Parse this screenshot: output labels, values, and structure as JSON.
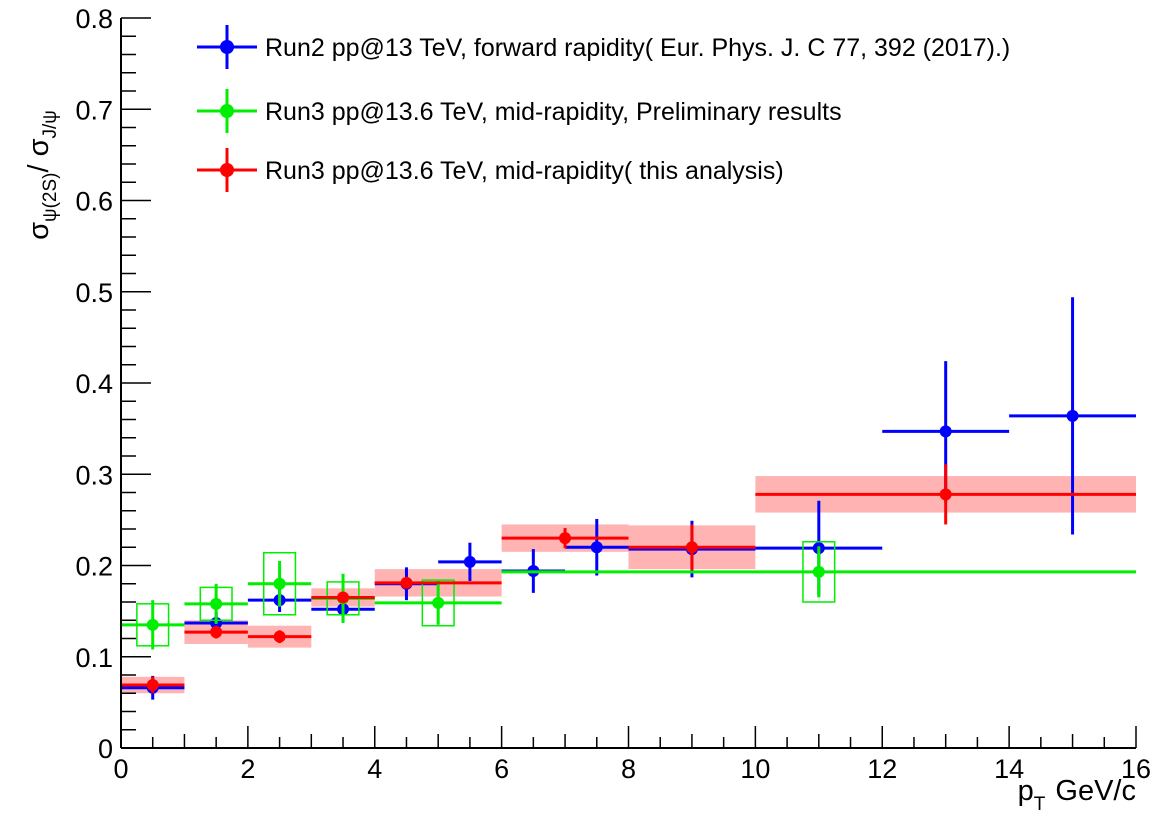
{
  "chart_data": {
    "type": "scatter",
    "title": "",
    "xlabel": "p",
    "xlabel_sub": "T",
    "xlabel_unit": "GeV/c",
    "ylabel_part1": "σ",
    "ylabel_sub1": "ψ(2S)",
    "ylabel_slash": "/ σ",
    "ylabel_sub2": "J/ψ",
    "xlim": [
      0,
      16
    ],
    "ylim": [
      0,
      0.8
    ],
    "x_ticks": [
      0,
      2,
      4,
      6,
      8,
      10,
      12,
      14,
      16
    ],
    "x_tick_labels": [
      "0",
      "2",
      "4",
      "6",
      "8",
      "10",
      "12",
      "14",
      "16"
    ],
    "y_ticks": [
      0,
      0.1,
      0.2,
      0.3,
      0.4,
      0.5,
      0.6,
      0.7,
      0.8
    ],
    "y_tick_labels": [
      "0",
      "0.1",
      "0.2",
      "0.3",
      "0.4",
      "0.5",
      "0.6",
      "0.7",
      "0.8"
    ],
    "grid": false,
    "legend_position": "top",
    "series": [
      {
        "name": "Run2 pp@13 TeV, forward rapidity( Eur. Phys. J. C 77, 392 (2017).)",
        "color": "#0000ff",
        "sys_style": "none",
        "points": [
          {
            "x": 0.5,
            "xlo": 0,
            "xhi": 1,
            "y": 0.066,
            "ey": 0.013
          },
          {
            "x": 1.5,
            "xlo": 1,
            "xhi": 2,
            "y": 0.137,
            "ey": 0.012
          },
          {
            "x": 2.5,
            "xlo": 2,
            "xhi": 3,
            "y": 0.162,
            "ey": 0.013
          },
          {
            "x": 3.5,
            "xlo": 3,
            "xhi": 4,
            "y": 0.152,
            "ey": 0.013
          },
          {
            "x": 4.5,
            "xlo": 4,
            "xhi": 5,
            "y": 0.18,
            "ey": 0.018
          },
          {
            "x": 5.5,
            "xlo": 5,
            "xhi": 6,
            "y": 0.204,
            "ey": 0.021
          },
          {
            "x": 6.5,
            "xlo": 6,
            "xhi": 7,
            "y": 0.194,
            "ey": 0.024
          },
          {
            "x": 7.5,
            "xlo": 7,
            "xhi": 8,
            "y": 0.22,
            "ey": 0.031
          },
          {
            "x": 9.0,
            "xlo": 8,
            "xhi": 10,
            "y": 0.218,
            "ey": 0.031
          },
          {
            "x": 11.0,
            "xlo": 10,
            "xhi": 12,
            "y": 0.219,
            "ey": 0.052
          },
          {
            "x": 13.0,
            "xlo": 12,
            "xhi": 14,
            "y": 0.347,
            "ey": 0.077
          },
          {
            "x": 15.0,
            "xlo": 14,
            "xhi": 16,
            "y": 0.364,
            "ey": 0.13
          }
        ]
      },
      {
        "name": "Run3 pp@13.6 TeV, mid-rapidity, Preliminary results",
        "color": "#00ee00",
        "sys_style": "box",
        "points": [
          {
            "x": 0.5,
            "xlo": 0,
            "xhi": 1,
            "y": 0.135,
            "ey": 0.027,
            "sys": 0.023,
            "sys_half_width": 0.25
          },
          {
            "x": 1.5,
            "xlo": 1,
            "xhi": 2,
            "y": 0.158,
            "ey": 0.022,
            "sys": 0.018,
            "sys_half_width": 0.25
          },
          {
            "x": 2.5,
            "xlo": 2,
            "xhi": 3,
            "y": 0.18,
            "ey": 0.025,
            "sys": 0.034,
            "sys_half_width": 0.25
          },
          {
            "x": 3.5,
            "xlo": 3,
            "xhi": 4,
            "y": 0.164,
            "ey": 0.027,
            "sys": 0.018,
            "sys_half_width": 0.25
          },
          {
            "x": 5.0,
            "xlo": 4,
            "xhi": 6,
            "y": 0.159,
            "ey": 0.024,
            "sys": 0.025,
            "sys_half_width": 0.25
          },
          {
            "x": 11.0,
            "xlo": 6,
            "xhi": 16,
            "y": 0.193,
            "ey": 0.028,
            "sys": 0.033,
            "sys_half_width": 0.25
          }
        ]
      },
      {
        "name": "Run3 pp@13.6 TeV, mid-rapidity( this analysis)",
        "color": "#ff0000",
        "sys_style": "band",
        "sys_color": "#ffb3b3",
        "points": [
          {
            "x": 0.5,
            "xlo": 0,
            "xhi": 1,
            "y": 0.069,
            "ey": 0.009,
            "sys": 0.009
          },
          {
            "x": 1.5,
            "xlo": 1,
            "xhi": 2,
            "y": 0.127,
            "ey": 0.007,
            "sys": 0.013
          },
          {
            "x": 2.5,
            "xlo": 2,
            "xhi": 3,
            "y": 0.122,
            "ey": 0.007,
            "sys": 0.012
          },
          {
            "x": 3.5,
            "xlo": 3,
            "xhi": 4,
            "y": 0.165,
            "ey": 0.005,
            "sys": 0.01
          },
          {
            "x": 4.5,
            "xlo": 4,
            "xhi": 6,
            "y": 0.181,
            "ey": 0.005,
            "sys": 0.015
          },
          {
            "x": 7.0,
            "xlo": 6,
            "xhi": 8,
            "y": 0.23,
            "ey": 0.011,
            "sys": 0.015
          },
          {
            "x": 9.0,
            "xlo": 8,
            "xhi": 10,
            "y": 0.22,
            "ey": 0.025,
            "sys": 0.024
          },
          {
            "x": 13.0,
            "xlo": 10,
            "xhi": 16,
            "y": 0.278,
            "ey": 0.033,
            "sys": 0.02
          }
        ]
      }
    ]
  }
}
